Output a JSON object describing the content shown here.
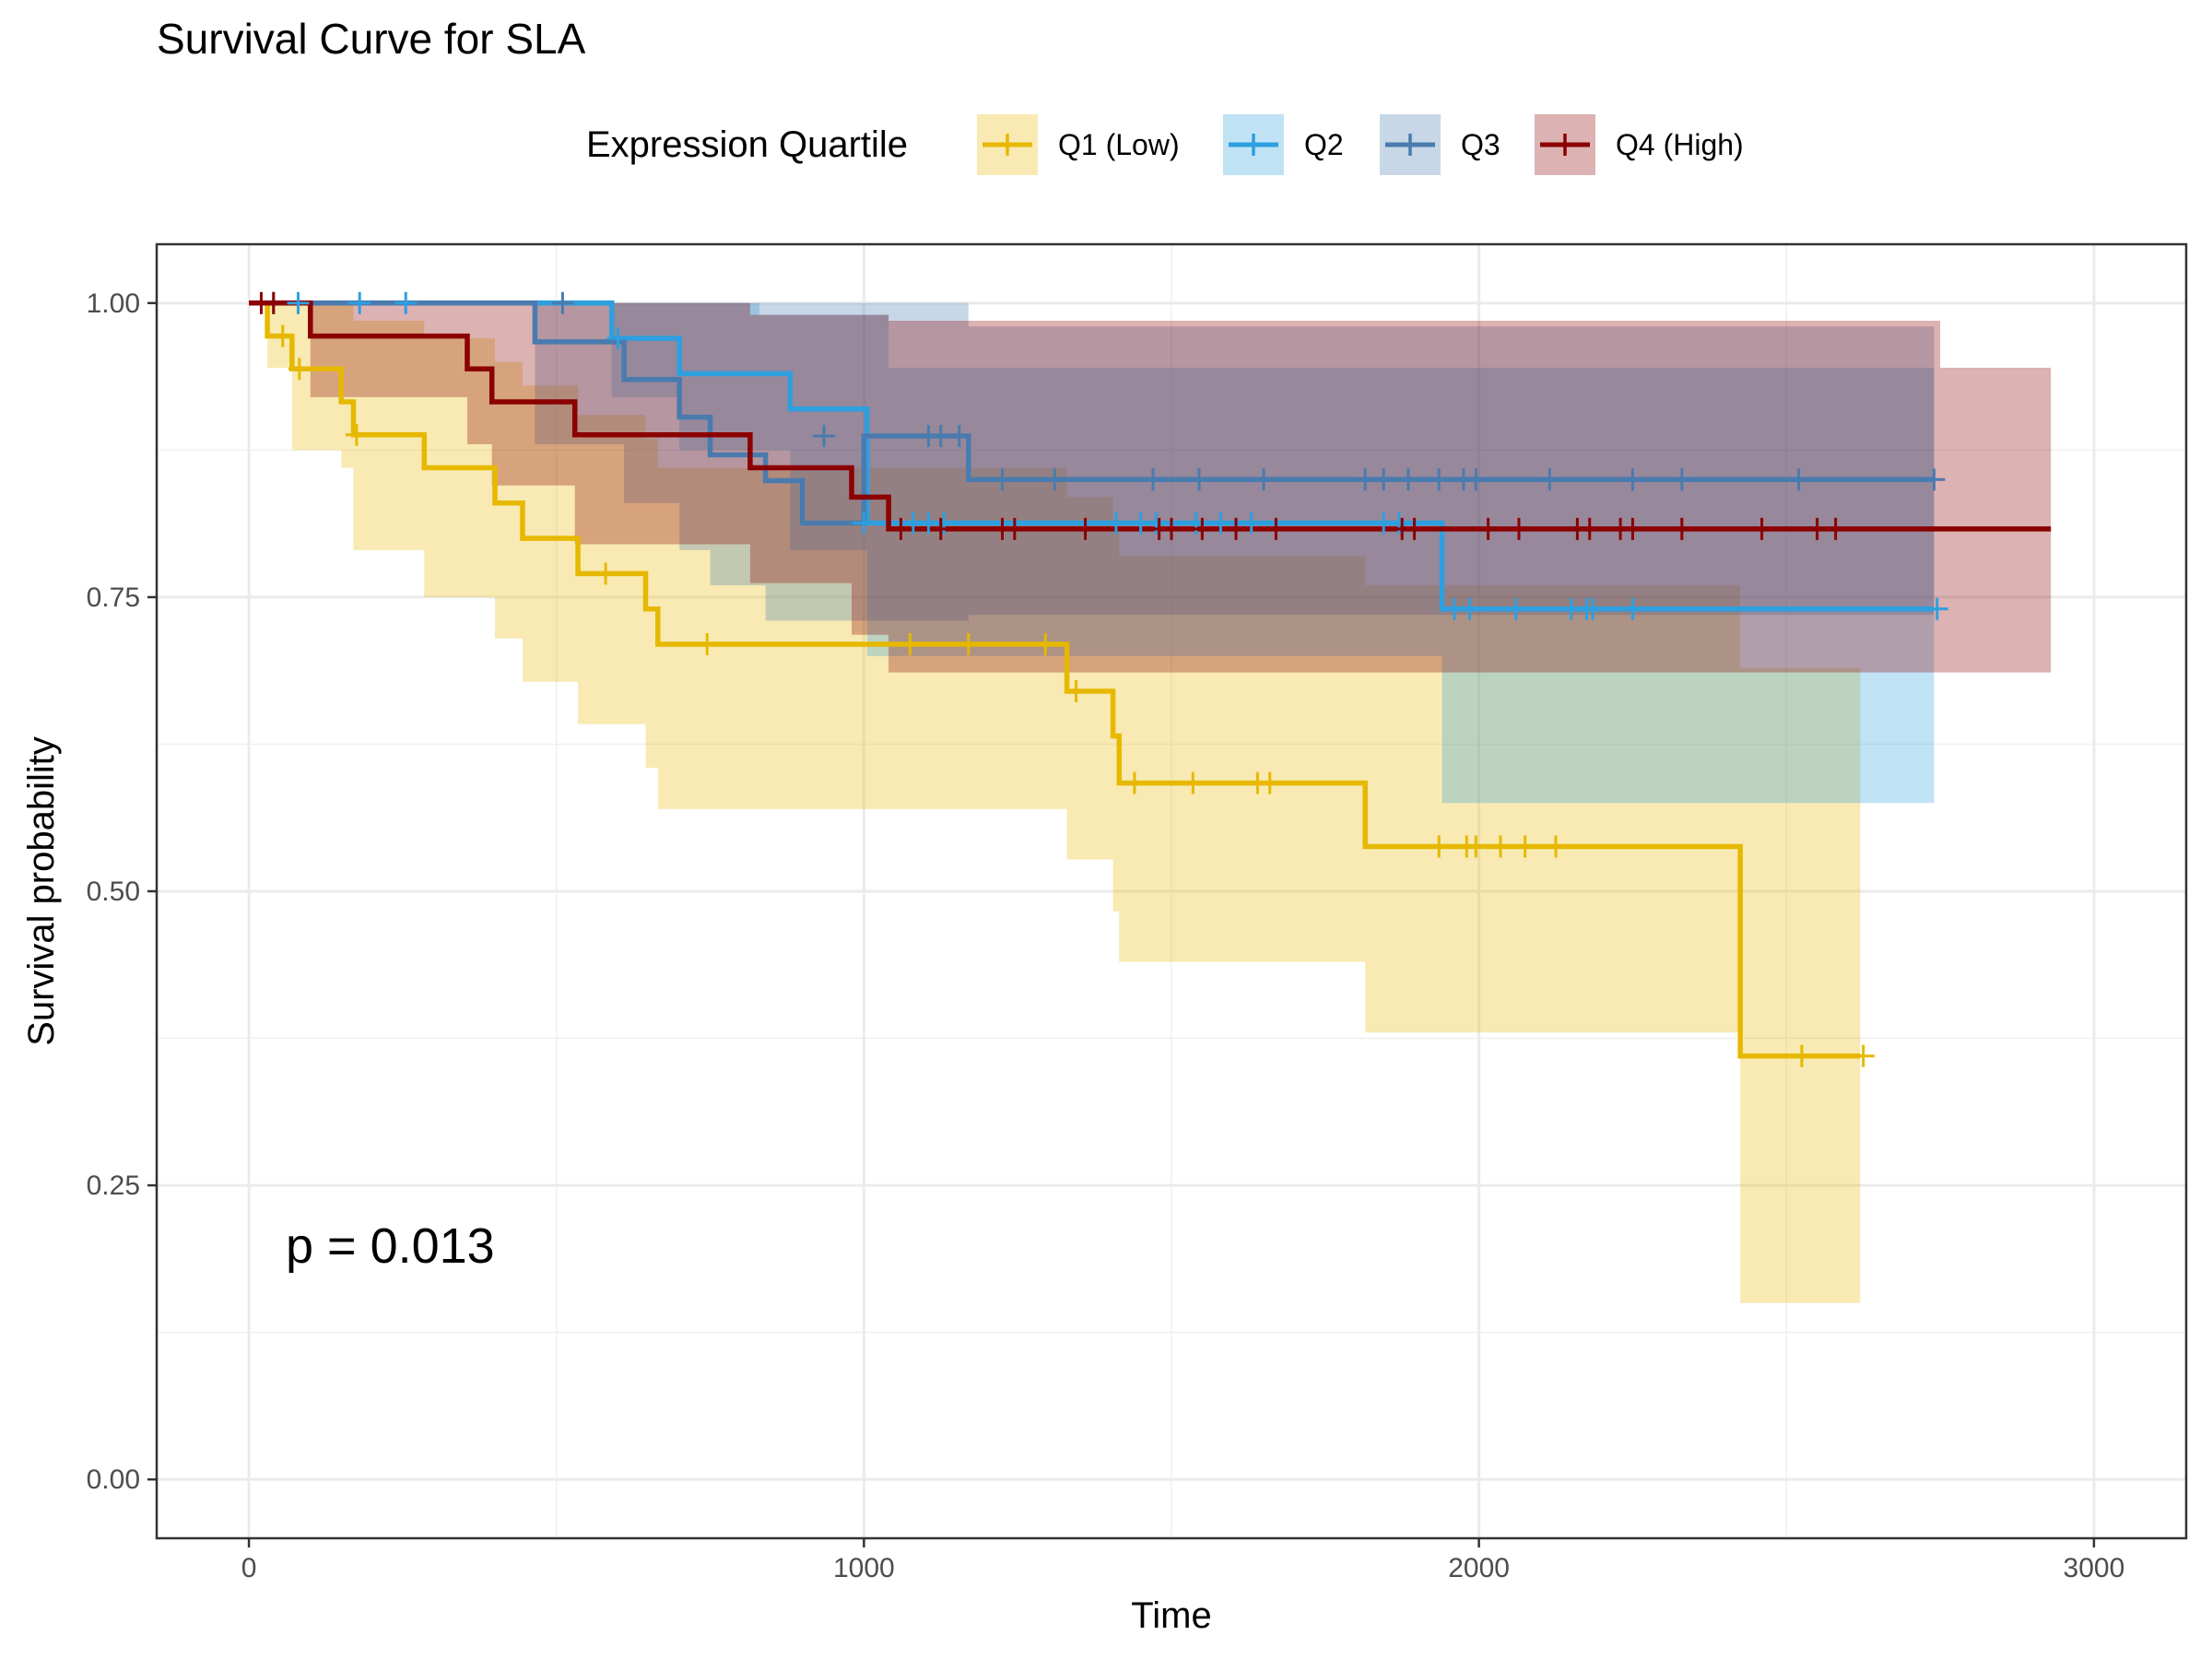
{
  "chart_data": {
    "type": "line",
    "subtype": "kaplan-meier survival curve with confidence bands",
    "title": "Survival Curve for SLA",
    "xlabel": "Time",
    "ylabel": "Survival probability",
    "xlim": [
      -150,
      3150
    ],
    "ylim": [
      -0.05,
      1.05
    ],
    "x_ticks": [
      0,
      1000,
      2000,
      3000
    ],
    "x_tick_labels": [
      "0",
      "1000",
      "2000",
      "3000"
    ],
    "y_ticks": [
      0,
      0.25,
      0.5,
      0.75,
      1.0
    ],
    "y_tick_labels": [
      "0.00",
      "0.25",
      "0.50",
      "0.75",
      "1.00"
    ],
    "grid": true,
    "legend": {
      "title": "Expression Quartile",
      "position": "top",
      "entries": [
        "Q1 (Low)",
        "Q2",
        "Q3",
        "Q4 (High)"
      ]
    },
    "annotation": "p = 0.013",
    "colors": {
      "Q1 (Low)": "#E7B800",
      "Q2": "#2E9FDF",
      "Q3": "#4A7BAE",
      "Q4 (High)": "#8B0000"
    },
    "series": [
      {
        "name": "Q1 (Low)",
        "steps": [
          [
            0,
            1.0
          ],
          [
            30,
            0.972
          ],
          [
            70,
            0.944
          ],
          [
            150,
            0.916
          ],
          [
            170,
            0.888
          ],
          [
            285,
            0.86
          ],
          [
            400,
            0.83
          ],
          [
            445,
            0.8
          ],
          [
            535,
            0.77
          ],
          [
            645,
            0.74
          ],
          [
            665,
            0.71
          ],
          [
            1330,
            0.67
          ],
          [
            1405,
            0.632
          ],
          [
            1415,
            0.592
          ],
          [
            1815,
            0.538
          ],
          [
            2425,
            0.36
          ],
          [
            2620,
            0.36
          ]
        ],
        "upper": [
          [
            0,
            1.0
          ],
          [
            30,
            1.0
          ],
          [
            70,
            1.0
          ],
          [
            150,
            1.0
          ],
          [
            170,
            0.985
          ],
          [
            285,
            0.97
          ],
          [
            400,
            0.95
          ],
          [
            445,
            0.93
          ],
          [
            535,
            0.905
          ],
          [
            645,
            0.885
          ],
          [
            665,
            0.86
          ],
          [
            1330,
            0.835
          ],
          [
            1405,
            0.81
          ],
          [
            1415,
            0.785
          ],
          [
            1815,
            0.76
          ],
          [
            2425,
            0.69
          ],
          [
            2620,
            0.69
          ]
        ],
        "lower": [
          [
            0,
            1.0
          ],
          [
            30,
            0.945
          ],
          [
            70,
            0.875
          ],
          [
            150,
            0.86
          ],
          [
            170,
            0.79
          ],
          [
            285,
            0.75
          ],
          [
            400,
            0.715
          ],
          [
            445,
            0.678
          ],
          [
            535,
            0.642
          ],
          [
            645,
            0.605
          ],
          [
            665,
            0.57
          ],
          [
            1330,
            0.527
          ],
          [
            1405,
            0.483
          ],
          [
            1415,
            0.44
          ],
          [
            1815,
            0.38
          ],
          [
            2425,
            0.15
          ],
          [
            2620,
            0.15
          ]
        ],
        "censored": [
          [
            55,
            0.972
          ],
          [
            82,
            0.944
          ],
          [
            175,
            0.888
          ],
          [
            580,
            0.77
          ],
          [
            745,
            0.71
          ],
          [
            1075,
            0.71
          ],
          [
            1170,
            0.71
          ],
          [
            1295,
            0.71
          ],
          [
            1345,
            0.67
          ],
          [
            1440,
            0.592
          ],
          [
            1535,
            0.592
          ],
          [
            1640,
            0.592
          ],
          [
            1660,
            0.592
          ],
          [
            1935,
            0.538
          ],
          [
            1980,
            0.538
          ],
          [
            1995,
            0.538
          ],
          [
            2035,
            0.538
          ],
          [
            2075,
            0.538
          ],
          [
            2125,
            0.538
          ],
          [
            2525,
            0.36
          ],
          [
            2625,
            0.36
          ]
        ]
      },
      {
        "name": "Q2",
        "steps": [
          [
            0,
            1.0
          ],
          [
            590,
            0.97
          ],
          [
            700,
            0.94
          ],
          [
            880,
            0.91
          ],
          [
            1005,
            0.813
          ],
          [
            1940,
            0.74
          ],
          [
            2740,
            0.74
          ]
        ],
        "upper": [
          [
            0,
            1.0
          ],
          [
            590,
            1.0
          ],
          [
            830,
            0.99
          ],
          [
            1040,
            0.945
          ],
          [
            1940,
            0.945
          ],
          [
            2740,
            0.945
          ]
        ],
        "lower": [
          [
            0,
            1.0
          ],
          [
            590,
            0.92
          ],
          [
            700,
            0.875
          ],
          [
            880,
            0.79
          ],
          [
            1005,
            0.7
          ],
          [
            1940,
            0.575
          ],
          [
            2740,
            0.575
          ]
        ],
        "censored": [
          [
            40,
            1.0
          ],
          [
            80,
            1.0
          ],
          [
            180,
            1.0
          ],
          [
            255,
            1.0
          ],
          [
            600,
            0.97
          ],
          [
            1000,
            0.813
          ],
          [
            1080,
            0.813
          ],
          [
            1105,
            0.813
          ],
          [
            1130,
            0.813
          ],
          [
            1410,
            0.813
          ],
          [
            1450,
            0.813
          ],
          [
            1475,
            0.813
          ],
          [
            1540,
            0.813
          ],
          [
            1580,
            0.813
          ],
          [
            1630,
            0.813
          ],
          [
            1845,
            0.813
          ],
          [
            1870,
            0.813
          ],
          [
            1960,
            0.74
          ],
          [
            1985,
            0.74
          ],
          [
            2060,
            0.74
          ],
          [
            2150,
            0.74
          ],
          [
            2175,
            0.74
          ],
          [
            2185,
            0.74
          ],
          [
            2250,
            0.74
          ],
          [
            2745,
            0.74
          ]
        ]
      },
      {
        "name": "Q3",
        "steps": [
          [
            0,
            1.0
          ],
          [
            465,
            0.967
          ],
          [
            610,
            0.935
          ],
          [
            700,
            0.903
          ],
          [
            750,
            0.871
          ],
          [
            840,
            0.849
          ],
          [
            900,
            0.813
          ],
          [
            1000,
            0.887
          ],
          [
            1170,
            0.85
          ],
          [
            2740,
            0.85
          ]
        ],
        "upper": [
          [
            0,
            1.0
          ],
          [
            1170,
            0.98
          ],
          [
            2740,
            0.98
          ]
        ],
        "lower": [
          [
            0,
            1.0
          ],
          [
            465,
            0.88
          ],
          [
            610,
            0.83
          ],
          [
            700,
            0.79
          ],
          [
            750,
            0.76
          ],
          [
            840,
            0.73
          ],
          [
            1170,
            0.735
          ],
          [
            2740,
            0.735
          ]
        ],
        "censored": [
          [
            510,
            1.0
          ],
          [
            935,
            0.887
          ],
          [
            1105,
            0.887
          ],
          [
            1125,
            0.887
          ],
          [
            1155,
            0.887
          ],
          [
            1225,
            0.85
          ],
          [
            1310,
            0.85
          ],
          [
            1470,
            0.85
          ],
          [
            1545,
            0.85
          ],
          [
            1650,
            0.85
          ],
          [
            1815,
            0.85
          ],
          [
            1845,
            0.85
          ],
          [
            1885,
            0.85
          ],
          [
            1935,
            0.85
          ],
          [
            1975,
            0.85
          ],
          [
            1995,
            0.85
          ],
          [
            2115,
            0.85
          ],
          [
            2250,
            0.85
          ],
          [
            2330,
            0.85
          ],
          [
            2520,
            0.85
          ],
          [
            2740,
            0.85
          ]
        ]
      },
      {
        "name": "Q4 (High)",
        "steps": [
          [
            0,
            1.0
          ],
          [
            100,
            0.972
          ],
          [
            355,
            0.944
          ],
          [
            395,
            0.916
          ],
          [
            530,
            0.888
          ],
          [
            815,
            0.86
          ],
          [
            980,
            0.835
          ],
          [
            1040,
            0.808
          ],
          [
            2930,
            0.808
          ]
        ],
        "upper": [
          [
            0,
            1.0
          ],
          [
            815,
            0.99
          ],
          [
            1040,
            0.985
          ],
          [
            2750,
            0.945
          ],
          [
            2930,
            0.945
          ]
        ],
        "lower": [
          [
            0,
            1.0
          ],
          [
            100,
            0.92
          ],
          [
            355,
            0.88
          ],
          [
            395,
            0.845
          ],
          [
            530,
            0.795
          ],
          [
            815,
            0.762
          ],
          [
            980,
            0.718
          ],
          [
            1040,
            0.686
          ],
          [
            2930,
            0.686
          ]
        ],
        "censored": [
          [
            20,
            1.0
          ],
          [
            40,
            1.0
          ],
          [
            1060,
            0.808
          ],
          [
            1125,
            0.808
          ],
          [
            1225,
            0.808
          ],
          [
            1245,
            0.808
          ],
          [
            1360,
            0.808
          ],
          [
            1480,
            0.808
          ],
          [
            1500,
            0.808
          ],
          [
            1550,
            0.808
          ],
          [
            1605,
            0.808
          ],
          [
            1670,
            0.808
          ],
          [
            1875,
            0.808
          ],
          [
            1895,
            0.808
          ],
          [
            2015,
            0.808
          ],
          [
            2065,
            0.808
          ],
          [
            2160,
            0.808
          ],
          [
            2180,
            0.808
          ],
          [
            2230,
            0.808
          ],
          [
            2250,
            0.808
          ],
          [
            2330,
            0.808
          ],
          [
            2460,
            0.808
          ],
          [
            2550,
            0.808
          ],
          [
            2580,
            0.808
          ]
        ]
      }
    ]
  }
}
